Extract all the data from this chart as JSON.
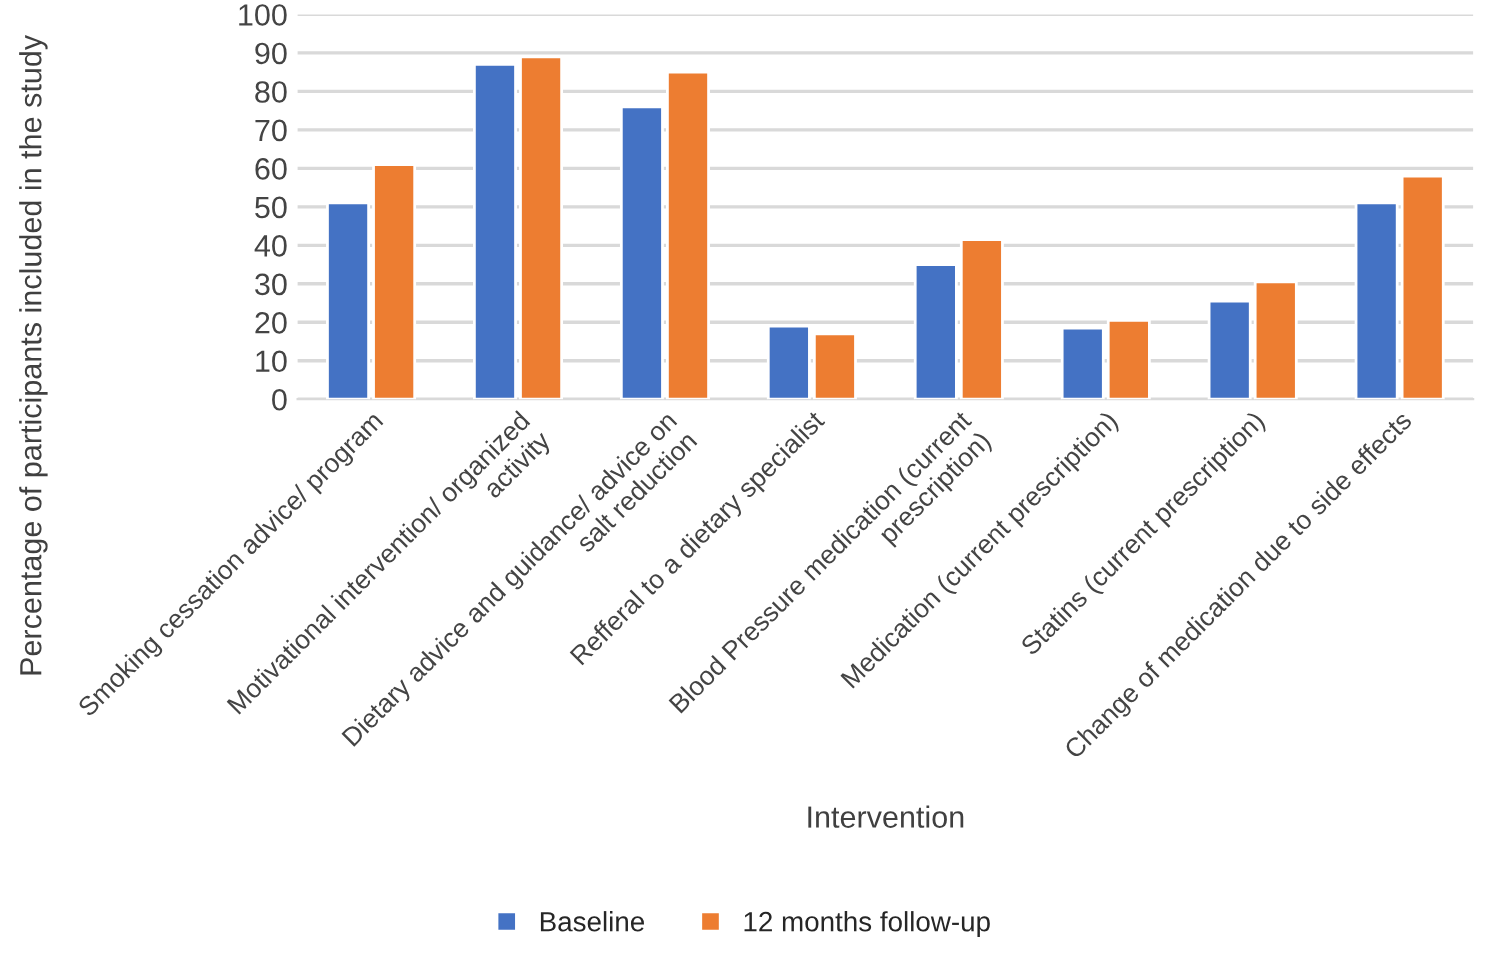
{
  "chart_data": {
    "type": "bar",
    "xlabel": "Intervention",
    "ylabel": "Percentage of participants included in the study",
    "categories": [
      "Smoking cessation advice/ program",
      "Motivational intervention/ organized\nactivity",
      "Dietary advice and guidance/ advice on\nsalt reduction",
      "Refferal to a dietary specialist",
      "Blood Pressure medication (current\nprescription)",
      "Medication (current prescription)",
      "Statins (current prescription)",
      "Change of medication due to side effects"
    ],
    "series": [
      {
        "name": "Baseline",
        "color": "#4472c4",
        "values": [
          51,
          87,
          76,
          19,
          35,
          18.5,
          25.5,
          51
        ]
      },
      {
        "name": "12 months follow-up",
        "color": "#ed7d31",
        "values": [
          61,
          89,
          85,
          17,
          41.5,
          20.5,
          30.5,
          58
        ]
      }
    ],
    "ylim": [
      0,
      100
    ],
    "yticks": [
      0,
      10,
      20,
      30,
      40,
      50,
      60,
      70,
      80,
      90,
      100
    ],
    "grid": "y",
    "legend": "bottom"
  }
}
